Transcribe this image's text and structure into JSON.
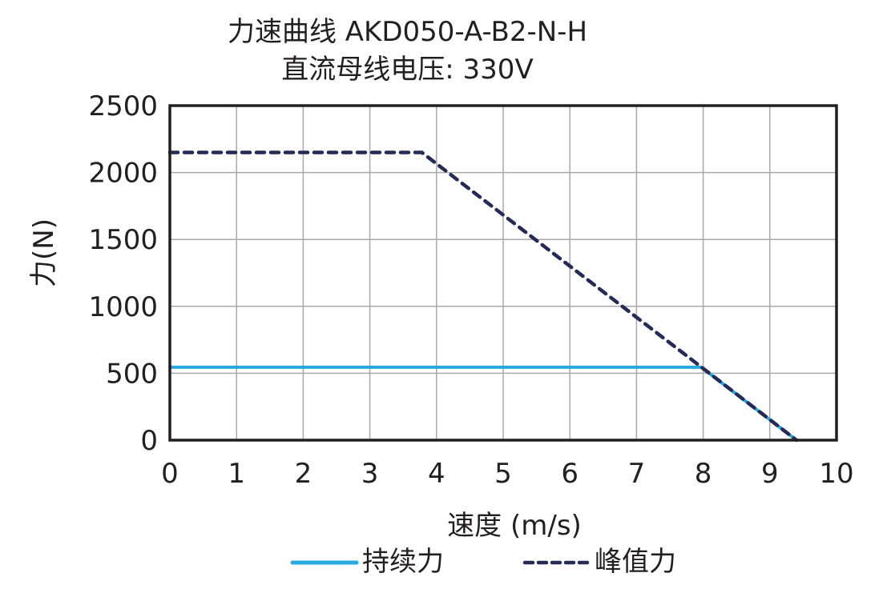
{
  "chart_data": {
    "type": "line",
    "title": "力速曲线 AKD050-A-B2-N-H",
    "subtitle": "直流母线电压: 330V",
    "xlabel": "速度 (m/s)",
    "ylabel": "力(N)",
    "xlim": [
      0,
      10
    ],
    "ylim": [
      0,
      2500
    ],
    "x_ticks": [
      "0",
      "1",
      "2",
      "3",
      "4",
      "5",
      "6",
      "7",
      "8",
      "9",
      "10"
    ],
    "y_ticks": [
      "0",
      "500",
      "1000",
      "1500",
      "2000",
      "2500"
    ],
    "grid": true,
    "legend_position": "bottom",
    "series": [
      {
        "name": "持续力",
        "style": "solid",
        "color": "#29A8DF",
        "x": [
          0,
          7.97,
          9.4
        ],
        "y": [
          545,
          545,
          0
        ]
      },
      {
        "name": "峰值力",
        "style": "dashed",
        "color": "#262B55",
        "x": [
          0,
          3.78,
          9.4
        ],
        "y": [
          2150,
          2150,
          0
        ]
      }
    ]
  },
  "legend": {
    "continuous": "持续力",
    "peak": "峰值力"
  }
}
